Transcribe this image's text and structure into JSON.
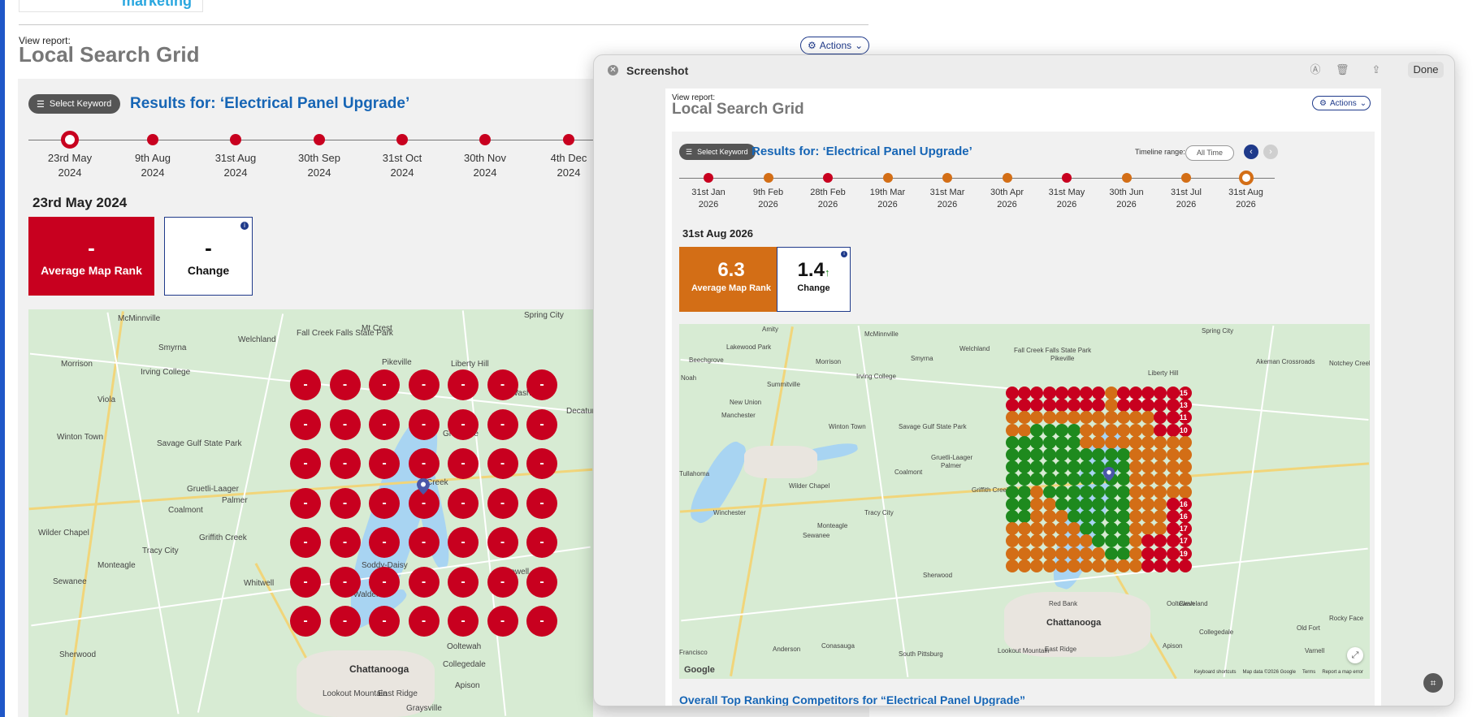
{
  "colors": {
    "red": "#c8001f",
    "orange": "#d36e16",
    "green": "#1e8a1e",
    "navy": "#1f3a8a",
    "blue_text": "#1665b5"
  },
  "background_report": {
    "logo_text": "marketing",
    "view_label": "View report:",
    "title": "Local Search Grid",
    "actions_label": "Actions",
    "select_keyword_label": "Select Keyword",
    "results_title": "Results for: ‘Electrical Panel Upgrade’",
    "timeline": [
      {
        "day": "23rd May",
        "year": "2024",
        "selected": true
      },
      {
        "day": "9th Aug",
        "year": "2024"
      },
      {
        "day": "31st Aug",
        "year": "2024"
      },
      {
        "day": "30th Sep",
        "year": "2024"
      },
      {
        "day": "31st Oct",
        "year": "2024"
      },
      {
        "day": "30th Nov",
        "year": "2024"
      },
      {
        "day": "4th Dec",
        "year": "2024"
      }
    ],
    "selected_date": "23rd May 2024",
    "avg_rank_value": "-",
    "avg_rank_label": "Average Map Rank",
    "change_value": "-",
    "change_label": "Change",
    "info_icon": "i",
    "grid_dot_value": "-",
    "map_labels": [
      "McMinnville",
      "Welchland",
      "Fall Creek Falls State Park",
      "Mt Crest",
      "Spring City",
      "Morrison",
      "Smyrna",
      "Pikeville",
      "Liberty Hill",
      "Irving College",
      "Old Washington",
      "Decatur",
      "Viola",
      "Winton Town",
      "Savage Gulf State Park",
      "Graysville",
      "Creek",
      "Gruetli-Laager",
      "Palmer",
      "Coalmont",
      "Wilder Chapel",
      "Griffith Creek",
      "Tracy City",
      "Monteagle",
      "Sewanee",
      "Whitwell",
      "Soddy-Daisy",
      "Hopewell",
      "Walden",
      "Chattanooga",
      "Ooltewah",
      "Collegedale",
      "Apison",
      "Lookout Mountain",
      "East Ridge",
      "Sherwood",
      "Graysville"
    ]
  },
  "overlay": {
    "window_title": "Screenshot",
    "done_label": "Done",
    "view_label": "View report:",
    "title": "Local Search Grid",
    "actions_label": "Actions",
    "select_keyword_label": "Select Keyword",
    "results_title": "Results for: ‘Electrical Panel Upgrade’",
    "timeline_range_label": "Timeline range:",
    "timeline_range_value": "All Time",
    "timeline": [
      {
        "day": "31st Jan",
        "year": "2026",
        "status": "red"
      },
      {
        "day": "9th Feb",
        "year": "2026",
        "status": "orange"
      },
      {
        "day": "28th Feb",
        "year": "2026",
        "status": "red"
      },
      {
        "day": "19th Mar",
        "year": "2026",
        "status": "orange"
      },
      {
        "day": "31st Mar",
        "year": "2026",
        "status": "orange"
      },
      {
        "day": "30th Apr",
        "year": "2026",
        "status": "orange"
      },
      {
        "day": "31st May",
        "year": "2026",
        "status": "red"
      },
      {
        "day": "30th Jun",
        "year": "2026",
        "status": "orange"
      },
      {
        "day": "31st Jul",
        "year": "2026",
        "status": "orange"
      },
      {
        "day": "31st Aug",
        "year": "2026",
        "status": "orange",
        "selected": true
      }
    ],
    "selected_date": "31st Aug 2026",
    "avg_rank_value": "6.3",
    "avg_rank_label": "Average Map Rank",
    "change_value": "1.4",
    "change_label": "Change",
    "info_icon": "i",
    "grid_labels_right": [
      "15",
      "13",
      "11",
      "10",
      "16",
      "16",
      "17",
      "17",
      "19"
    ],
    "map_labels": [
      "Amity",
      "McMinnville",
      "Lakewood Park",
      "Welchland",
      "Spring City",
      "Beechgrove",
      "Morrison",
      "Smyrna",
      "Fall Creek Falls State Park",
      "Pikeville",
      "Liberty Hill",
      "Akeman Crossroads",
      "Noah",
      "Summitville",
      "Irving College",
      "Notchey Creek",
      "New Union",
      "Manchester",
      "Winton Town",
      "Savage Gulf State Park",
      "Gruetli-Laager",
      "Palmer",
      "Tullahoma",
      "Coalmont",
      "Wilder Chapel",
      "Griffith Creek",
      "Winchester",
      "Tracy City",
      "Monteagle",
      "Sewanee",
      "Red Bank",
      "Chattanooga",
      "Ooltewah",
      "Collegedale",
      "Cleveland",
      "Old Fort",
      "Conasauga",
      "Anderson",
      "Sherwood",
      "Francisco",
      "South Pittsburg",
      "Lookout Mountain",
      "East Ridge",
      "Apison",
      "Varnell",
      "Rocky Face"
    ],
    "google_label": "Google",
    "map_footer": [
      "Keyboard shortcuts",
      "Map data ©2026 Google",
      "Terms",
      "Report a map error"
    ],
    "bottom_cut_text": "Overall Top Ranking Competitors for “Electrical Panel Upgrade”"
  }
}
